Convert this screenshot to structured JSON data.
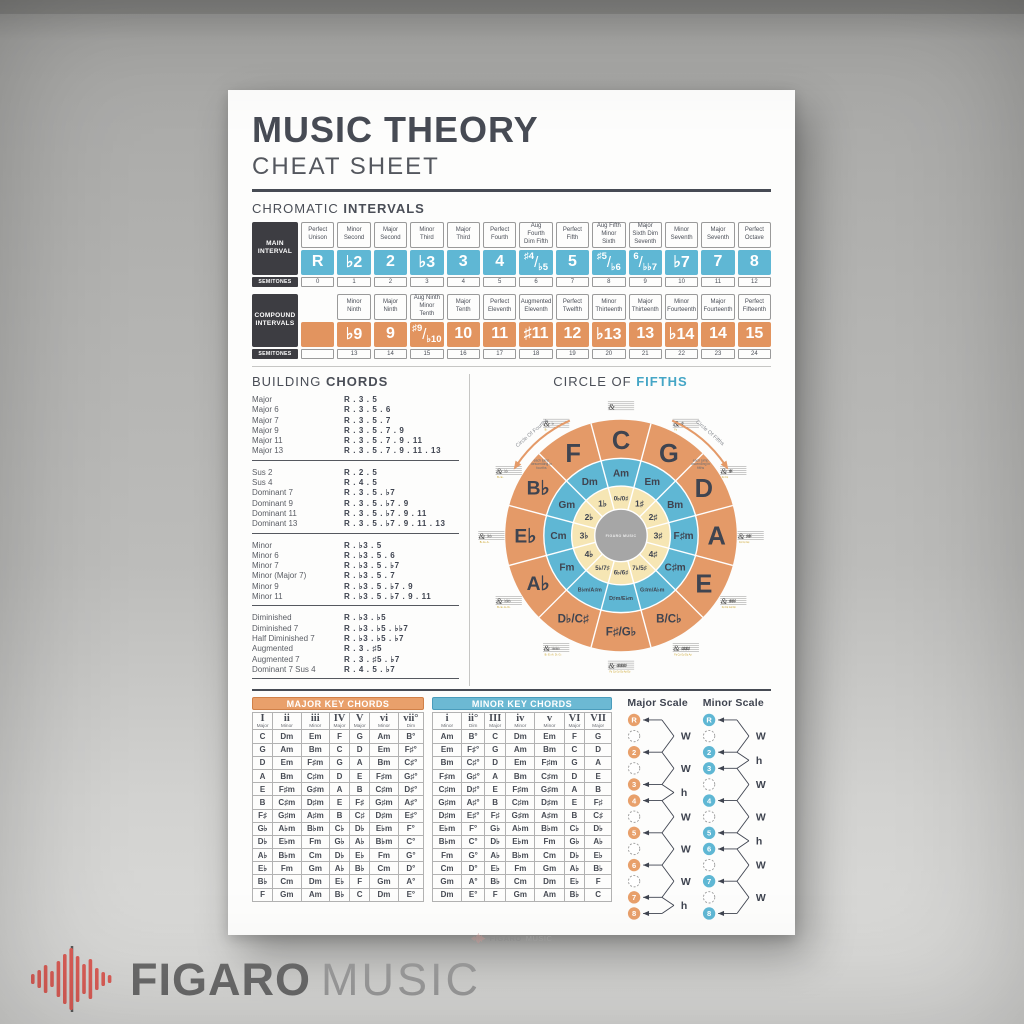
{
  "poster": {
    "title": "MUSIC THEORY",
    "subtitle": "CHEAT SHEET"
  },
  "chromatic_intervals": {
    "heading_light": "CHROMATIC ",
    "heading_bold": "INTERVALS",
    "main": {
      "row_label": "MAIN INTERVAL",
      "semitones_label": "SEMITONES",
      "columns": [
        {
          "name": "Perfect Unison",
          "symbol": "R",
          "semitones": "0"
        },
        {
          "name": "Minor Second",
          "symbol": "♭2",
          "semitones": "1"
        },
        {
          "name": "Major Second",
          "symbol": "2",
          "semitones": "2"
        },
        {
          "name": "Minor Third",
          "symbol": "♭3",
          "semitones": "3"
        },
        {
          "name": "Major Third",
          "symbol": "3",
          "semitones": "4"
        },
        {
          "name": "Perfect Fourth",
          "symbol": "4",
          "semitones": "5"
        },
        {
          "name": "Aug Fourth Dim Fifth",
          "symbol": "♯4/♭5",
          "semitones": "6"
        },
        {
          "name": "Perfect Fifth",
          "symbol": "5",
          "semitones": "7"
        },
        {
          "name": "Aug Fifth Minor Sixth",
          "symbol": "♯5/♭6",
          "semitones": "8"
        },
        {
          "name": "Major Sixth Dim Seventh",
          "symbol": "6/♭♭7",
          "semitones": "9"
        },
        {
          "name": "Minor Seventh",
          "symbol": "♭7",
          "semitones": "10"
        },
        {
          "name": "Major Seventh",
          "symbol": "7",
          "semitones": "11"
        },
        {
          "name": "Perfect Octave",
          "symbol": "8",
          "semitones": "12"
        }
      ]
    },
    "compound": {
      "row_label": "COMPOUND INTERVALS",
      "semitones_label": "SEMITONES",
      "columns": [
        {
          "name": "",
          "symbol": "",
          "semitones": ""
        },
        {
          "name": "Minor Ninth",
          "symbol": "♭9",
          "semitones": "13"
        },
        {
          "name": "Major Ninth",
          "symbol": "9",
          "semitones": "14"
        },
        {
          "name": "Aug Ninth Minor Tenth",
          "symbol": "♯9/♭10",
          "semitones": "15"
        },
        {
          "name": "Major Tenth",
          "symbol": "10",
          "semitones": "16"
        },
        {
          "name": "Perfect Eleventh",
          "symbol": "11",
          "semitones": "17"
        },
        {
          "name": "Augmented Eleventh",
          "symbol": "♯11",
          "semitones": "18"
        },
        {
          "name": "Perfect Twelfth",
          "symbol": "12",
          "semitones": "19"
        },
        {
          "name": "Minor Thirteenth",
          "symbol": "♭13",
          "semitones": "20"
        },
        {
          "name": "Major Thirteenth",
          "symbol": "13",
          "semitones": "21"
        },
        {
          "name": "Minor Fourteenth",
          "symbol": "♭14",
          "semitones": "22"
        },
        {
          "name": "Major Fourteenth",
          "symbol": "14",
          "semitones": "23"
        },
        {
          "name": "Perfect Fifteenth",
          "symbol": "15",
          "semitones": "24"
        }
      ]
    }
  },
  "building_chords": {
    "heading_light": "BUILDING ",
    "heading_bold": "CHORDS",
    "groups": [
      {
        "rows": [
          {
            "name": "Major",
            "formula": "R . 3 . 5"
          },
          {
            "name": "Major 6",
            "formula": "R . 3 . 5 . 6"
          },
          {
            "name": "Major 7",
            "formula": "R . 3 . 5 . 7"
          },
          {
            "name": "Major 9",
            "formula": "R . 3 . 5 . 7 . 9"
          },
          {
            "name": "Major 11",
            "formula": "R . 3 . 5 . 7 . 9 . 11"
          },
          {
            "name": "Major 13",
            "formula": "R . 3 . 5 . 7 . 9 . 11 . 13"
          }
        ]
      },
      {
        "rows": [
          {
            "name": "Sus 2",
            "formula": "R . 2 . 5"
          },
          {
            "name": "Sus 4",
            "formula": "R . 4 . 5"
          },
          {
            "name": "Dominant 7",
            "formula": "R . 3 . 5 . ♭7"
          },
          {
            "name": "Dominant 9",
            "formula": "R . 3 . 5 . ♭7 . 9"
          },
          {
            "name": "Dominant 11",
            "formula": "R . 3 . 5 . ♭7 . 9 . 11"
          },
          {
            "name": "Dominant 13",
            "formula": "R . 3 . 5 . ♭7 . 9 . 11 . 13"
          }
        ]
      },
      {
        "rows": [
          {
            "name": "Minor",
            "formula": "R . ♭3 . 5"
          },
          {
            "name": "Minor 6",
            "formula": "R . ♭3 . 5 . 6"
          },
          {
            "name": "Minor 7",
            "formula": "R . ♭3 . 5 . ♭7"
          },
          {
            "name": "Minor (Major 7)",
            "formula": "R . ♭3 . 5 . 7"
          },
          {
            "name": "Minor 9",
            "formula": "R . ♭3 . 5 . ♭7 . 9"
          },
          {
            "name": "Minor 11",
            "formula": "R . ♭3 . 5 . ♭7 . 9 . 11"
          }
        ]
      },
      {
        "rows": [
          {
            "name": "Diminished",
            "formula": "R . ♭3 . ♭5"
          },
          {
            "name": "Diminished 7",
            "formula": "R . ♭3 . ♭5 . ♭♭7"
          },
          {
            "name": "Half Diminished 7",
            "formula": "R . ♭3 . ♭5 . ♭7"
          },
          {
            "name": "Augmented",
            "formula": "R . 3 . ♯5"
          },
          {
            "name": "Augmented 7",
            "formula": "R . 3 . ♯5 . ♭7"
          },
          {
            "name": "Dominant 7 Sus 4",
            "formula": "R . 4 . 5 . ♭7"
          }
        ]
      }
    ]
  },
  "circle_of_fifths": {
    "heading_light": "CIRCLE OF ",
    "heading_bold": "FIFTHS",
    "center_logo": "FIGARO MUSIC",
    "left_arrow": {
      "label": "Circle Of Fourths",
      "note_lines": [
        "each jump",
        "descending in",
        "fourths"
      ]
    },
    "right_arrow": {
      "label": "Circle Of Fifths",
      "note_lines": [
        "each jump",
        "ascending in",
        "fifths"
      ]
    },
    "segments": [
      {
        "major": "C",
        "minor": "Am",
        "count": "0♭/0♯",
        "sig": "",
        "sig_names": ""
      },
      {
        "major": "G",
        "minor": "Em",
        "count": "1♯",
        "sig": "♯",
        "sig_names": "F♯"
      },
      {
        "major": "D",
        "minor": "Bm",
        "count": "2♯",
        "sig": "♯♯",
        "sig_names": "F♯ C♯"
      },
      {
        "major": "A",
        "minor": "F♯m",
        "count": "3♯",
        "sig": "♯♯♯",
        "sig_names": "F♯ C♯ G♯"
      },
      {
        "major": "E",
        "minor": "C♯m",
        "count": "4♯",
        "sig": "♯♯♯♯",
        "sig_names": "F♯ C♯ G♯ D♯"
      },
      {
        "major": "B/C♭",
        "minor": "G♯m/A♭m",
        "count": "7♭/5♯",
        "sig": "♯♯♯♯♯",
        "sig_names": "F♯ C♯ G♯ D♯ A♯"
      },
      {
        "major": "F♯/G♭",
        "minor": "D♯m/E♭m",
        "count": "6♭/6♯",
        "sig": "♯♯♯♯♯♯",
        "sig_names": "F♯ C♯ G♯ D♯ A♯ E♯"
      },
      {
        "major": "D♭/C♯",
        "minor": "B♭m/A♯m",
        "count": "5♭/7♯",
        "sig": "♭♭♭♭♭",
        "sig_names": "B♭ E♭ A♭ D♭ G♭"
      },
      {
        "major": "A♭",
        "minor": "Fm",
        "count": "4♭",
        "sig": "♭♭♭♭",
        "sig_names": "B♭ E♭ A♭ D♭"
      },
      {
        "major": "E♭",
        "minor": "Cm",
        "count": "3♭",
        "sig": "♭♭♭",
        "sig_names": "B♭ E♭ A♭"
      },
      {
        "major": "B♭",
        "minor": "Gm",
        "count": "2♭",
        "sig": "♭♭",
        "sig_names": "B♭ E♭"
      },
      {
        "major": "F",
        "minor": "Dm",
        "count": "1♭",
        "sig": "♭",
        "sig_names": "B♭"
      }
    ]
  },
  "major_key_chords": {
    "title": "MAJOR KEY CHORDS",
    "numerals": [
      "I",
      "ii",
      "iii",
      "IV",
      "V",
      "vi",
      "vii°"
    ],
    "qualities": [
      "Major",
      "Minor",
      "Minor",
      "Major",
      "Major",
      "Minor",
      "Dim"
    ],
    "rows": [
      [
        "C",
        "Dm",
        "Em",
        "F",
        "G",
        "Am",
        "B°"
      ],
      [
        "G",
        "Am",
        "Bm",
        "C",
        "D",
        "Em",
        "F♯°"
      ],
      [
        "D",
        "Em",
        "F♯m",
        "G",
        "A",
        "Bm",
        "C♯°"
      ],
      [
        "A",
        "Bm",
        "C♯m",
        "D",
        "E",
        "F♯m",
        "G♯°"
      ],
      [
        "E",
        "F♯m",
        "G♯m",
        "A",
        "B",
        "C♯m",
        "D♯°"
      ],
      [
        "B",
        "C♯m",
        "D♯m",
        "E",
        "F♯",
        "G♯m",
        "A♯°"
      ],
      [
        "F♯",
        "G♯m",
        "A♯m",
        "B",
        "C♯",
        "D♯m",
        "E♯°"
      ],
      [
        "G♭",
        "A♭m",
        "B♭m",
        "C♭",
        "D♭",
        "E♭m",
        "F°"
      ],
      [
        "D♭",
        "E♭m",
        "Fm",
        "G♭",
        "A♭",
        "B♭m",
        "C°"
      ],
      [
        "A♭",
        "B♭m",
        "Cm",
        "D♭",
        "E♭",
        "Fm",
        "G°"
      ],
      [
        "E♭",
        "Fm",
        "Gm",
        "A♭",
        "B♭",
        "Cm",
        "D°"
      ],
      [
        "B♭",
        "Cm",
        "Dm",
        "E♭",
        "F",
        "Gm",
        "A°"
      ],
      [
        "F",
        "Gm",
        "Am",
        "B♭",
        "C",
        "Dm",
        "E°"
      ]
    ]
  },
  "minor_key_chords": {
    "title": "MINOR KEY CHORDS",
    "numerals": [
      "i",
      "ii°",
      "III",
      "iv",
      "v",
      "VI",
      "VII"
    ],
    "qualities": [
      "Minor",
      "Dim",
      "Major",
      "Minor",
      "Minor",
      "Major",
      "Major"
    ],
    "rows": [
      [
        "Am",
        "B°",
        "C",
        "Dm",
        "Em",
        "F",
        "G"
      ],
      [
        "Em",
        "F♯°",
        "G",
        "Am",
        "Bm",
        "C",
        "D"
      ],
      [
        "Bm",
        "C♯°",
        "D",
        "Em",
        "F♯m",
        "G",
        "A"
      ],
      [
        "F♯m",
        "G♯°",
        "A",
        "Bm",
        "C♯m",
        "D",
        "E"
      ],
      [
        "C♯m",
        "D♯°",
        "E",
        "F♯m",
        "G♯m",
        "A",
        "B"
      ],
      [
        "G♯m",
        "A♯°",
        "B",
        "C♯m",
        "D♯m",
        "E",
        "F♯"
      ],
      [
        "D♯m",
        "E♯°",
        "F♯",
        "G♯m",
        "A♯m",
        "B",
        "C♯"
      ],
      [
        "E♭m",
        "F°",
        "G♭",
        "A♭m",
        "B♭m",
        "C♭",
        "D♭"
      ],
      [
        "B♭m",
        "C°",
        "D♭",
        "E♭m",
        "Fm",
        "G♭",
        "A♭"
      ],
      [
        "Fm",
        "G°",
        "A♭",
        "B♭m",
        "Cm",
        "D♭",
        "E♭"
      ],
      [
        "Cm",
        "D°",
        "E♭",
        "Fm",
        "Gm",
        "A♭",
        "B♭"
      ],
      [
        "Gm",
        "A°",
        "B♭",
        "Cm",
        "Dm",
        "E♭",
        "F"
      ],
      [
        "Dm",
        "E°",
        "F",
        "Gm",
        "Am",
        "B♭",
        "C"
      ]
    ]
  },
  "scales": {
    "major": {
      "title": "Major Scale",
      "degrees": [
        "R",
        "",
        "2",
        "",
        "3",
        "4",
        "",
        "5",
        "",
        "6",
        "",
        "7",
        "8"
      ],
      "steps": [
        "W",
        "W",
        "h",
        "W",
        "W",
        "W",
        "h"
      ]
    },
    "minor": {
      "title": "Minor Scale",
      "degrees": [
        "R",
        "",
        "2",
        "3",
        "",
        "4",
        "",
        "5",
        "6",
        "",
        "7",
        "",
        "8"
      ],
      "steps": [
        "W",
        "h",
        "W",
        "W",
        "h",
        "W",
        "W"
      ]
    }
  },
  "footer": {
    "brand_bold": "FIGARO",
    "brand_light": "MUSIC"
  },
  "watermark": {
    "brand_bold": "FIGARO",
    "brand_light": "MUSIC"
  },
  "colors": {
    "blue": "#5fb7d4",
    "orange": "#e2945f",
    "orange_ring": "#e49a68",
    "cream": "#f6e6b4",
    "center_gray": "#a6a6a6",
    "dark": "#3f4450",
    "logo_red": "#df5f58"
  }
}
